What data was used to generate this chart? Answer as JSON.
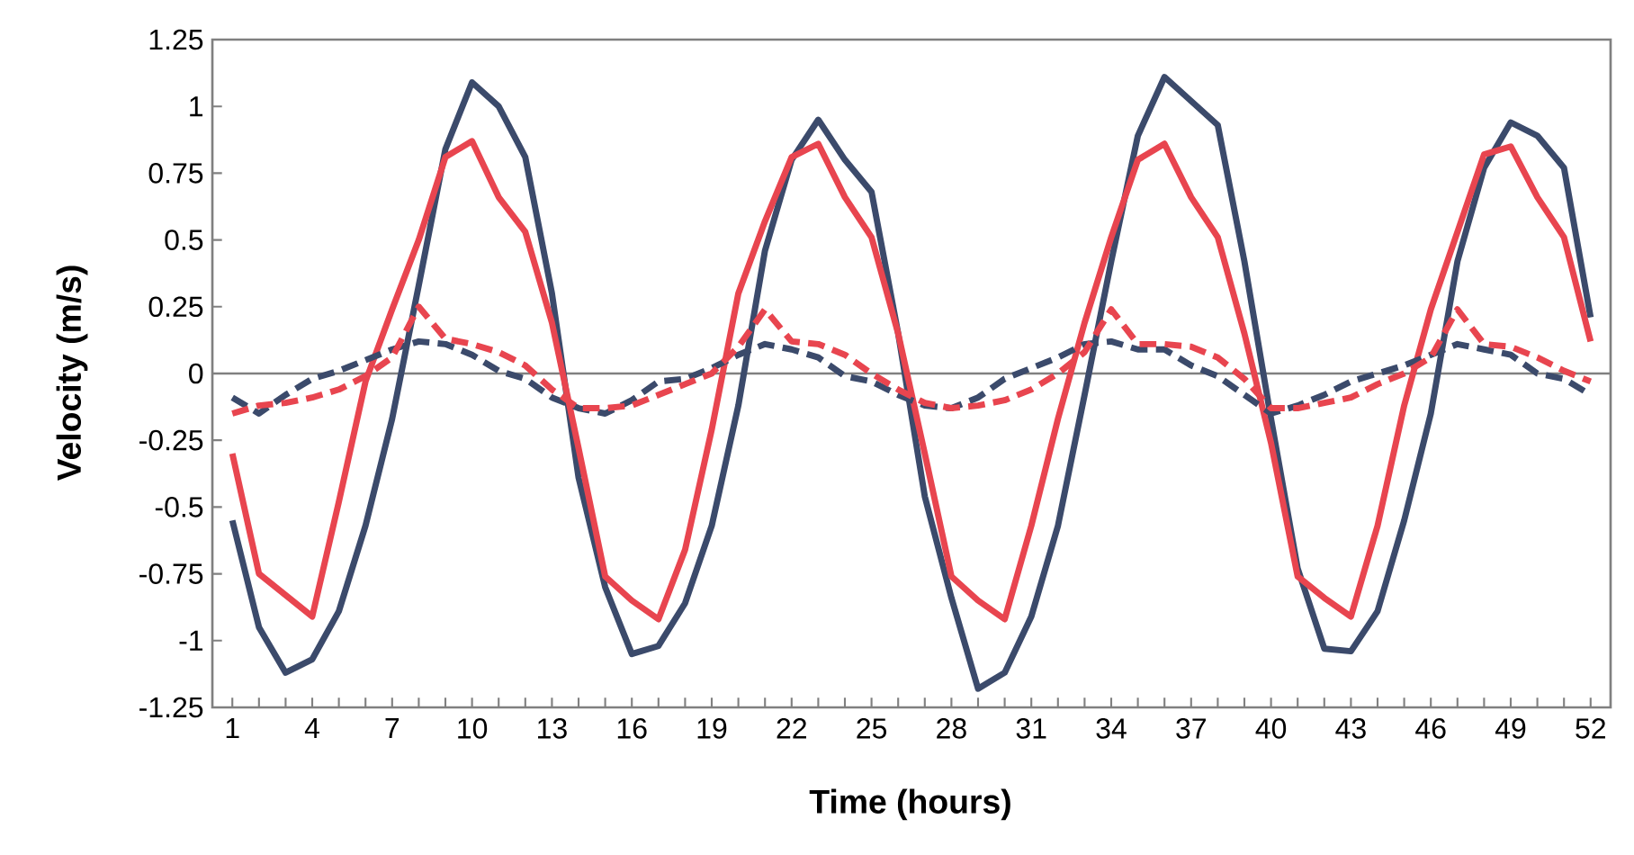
{
  "chart_data": {
    "type": "line",
    "xlabel": "Time (hours)",
    "ylabel": "Velocity (m/s)",
    "categories": [
      "1",
      null,
      null,
      "4",
      null,
      null,
      "7",
      null,
      null,
      "10",
      null,
      null,
      "13",
      null,
      null,
      "16",
      null,
      null,
      "19",
      null,
      null,
      "22",
      null,
      null,
      "25",
      null,
      null,
      "28",
      null,
      null,
      "31",
      null,
      null,
      "34",
      null,
      null,
      "37",
      null,
      null,
      "40",
      null,
      null,
      "43",
      null,
      null,
      "46",
      null,
      null,
      "49",
      null,
      null,
      "52"
    ],
    "ylim": [
      -1.25,
      1.25
    ],
    "yticks": [
      -1.25,
      -1,
      -0.75,
      -0.5,
      -0.25,
      0,
      0.25,
      0.5,
      0.75,
      1,
      1.25
    ],
    "grid": false,
    "marker": "none",
    "ref_lines": [
      {
        "axis": "y",
        "value": 0,
        "color": "#808080"
      }
    ],
    "series": [
      {
        "color": "#3b4a6b",
        "line_style": "solid",
        "values": [
          -0.55,
          -0.95,
          -1.12,
          -1.07,
          -0.89,
          -0.57,
          -0.17,
          0.33,
          0.84,
          1.09,
          1.0,
          0.81,
          0.3,
          -0.39,
          -0.8,
          -1.05,
          -1.02,
          -0.86,
          -0.57,
          -0.12,
          0.46,
          0.8,
          0.95,
          0.8,
          0.68,
          0.15,
          -0.46,
          -0.84,
          -1.18,
          -1.12,
          -0.91,
          -0.57,
          -0.08,
          0.42,
          0.89,
          1.11,
          1.02,
          0.93,
          0.42,
          -0.17,
          -0.73,
          -1.03,
          -1.04,
          -0.89,
          -0.55,
          -0.15,
          0.42,
          0.77,
          0.94,
          0.89,
          0.77,
          0.21
        ]
      },
      {
        "color": "#e8454f",
        "line_style": "solid",
        "values": [
          -0.3,
          -0.75,
          -0.83,
          -0.91,
          -0.48,
          -0.03,
          0.24,
          0.5,
          0.81,
          0.87,
          0.66,
          0.53,
          0.19,
          -0.28,
          -0.76,
          -0.85,
          -0.92,
          -0.66,
          -0.21,
          0.3,
          0.57,
          0.81,
          0.86,
          0.66,
          0.51,
          0.15,
          -0.3,
          -0.76,
          -0.85,
          -0.92,
          -0.57,
          -0.17,
          0.19,
          0.51,
          0.8,
          0.86,
          0.66,
          0.51,
          0.15,
          -0.26,
          -0.76,
          -0.84,
          -0.91,
          -0.57,
          -0.12,
          0.24,
          0.53,
          0.82,
          0.85,
          0.66,
          0.51,
          0.12
        ]
      },
      {
        "color": "#3b4a6b",
        "line_style": "dashed",
        "values": [
          -0.09,
          -0.15,
          -0.08,
          -0.02,
          0.01,
          0.05,
          0.09,
          0.12,
          0.11,
          0.07,
          0.01,
          -0.02,
          -0.09,
          -0.13,
          -0.15,
          -0.1,
          -0.03,
          -0.02,
          0.02,
          0.07,
          0.11,
          0.09,
          0.06,
          -0.01,
          -0.03,
          -0.08,
          -0.12,
          -0.13,
          -0.09,
          -0.02,
          0.02,
          0.06,
          0.11,
          0.12,
          0.09,
          0.09,
          0.03,
          -0.01,
          -0.08,
          -0.15,
          -0.12,
          -0.08,
          -0.03,
          0.0,
          0.03,
          0.07,
          0.11,
          0.09,
          0.07,
          0.0,
          -0.02,
          -0.08
        ]
      },
      {
        "color": "#e8454f",
        "line_style": "dashed",
        "values": [
          -0.15,
          -0.12,
          -0.11,
          -0.09,
          -0.06,
          -0.01,
          0.06,
          0.25,
          0.13,
          0.11,
          0.08,
          0.03,
          -0.06,
          -0.13,
          -0.13,
          -0.12,
          -0.08,
          -0.04,
          0.0,
          0.1,
          0.24,
          0.12,
          0.11,
          0.07,
          0.0,
          -0.06,
          -0.11,
          -0.13,
          -0.12,
          -0.1,
          -0.06,
          0.0,
          0.08,
          0.24,
          0.11,
          0.11,
          0.1,
          0.06,
          -0.02,
          -0.13,
          -0.13,
          -0.11,
          -0.09,
          -0.04,
          0.0,
          0.06,
          0.24,
          0.11,
          0.1,
          0.06,
          0.01,
          -0.03
        ]
      }
    ]
  }
}
